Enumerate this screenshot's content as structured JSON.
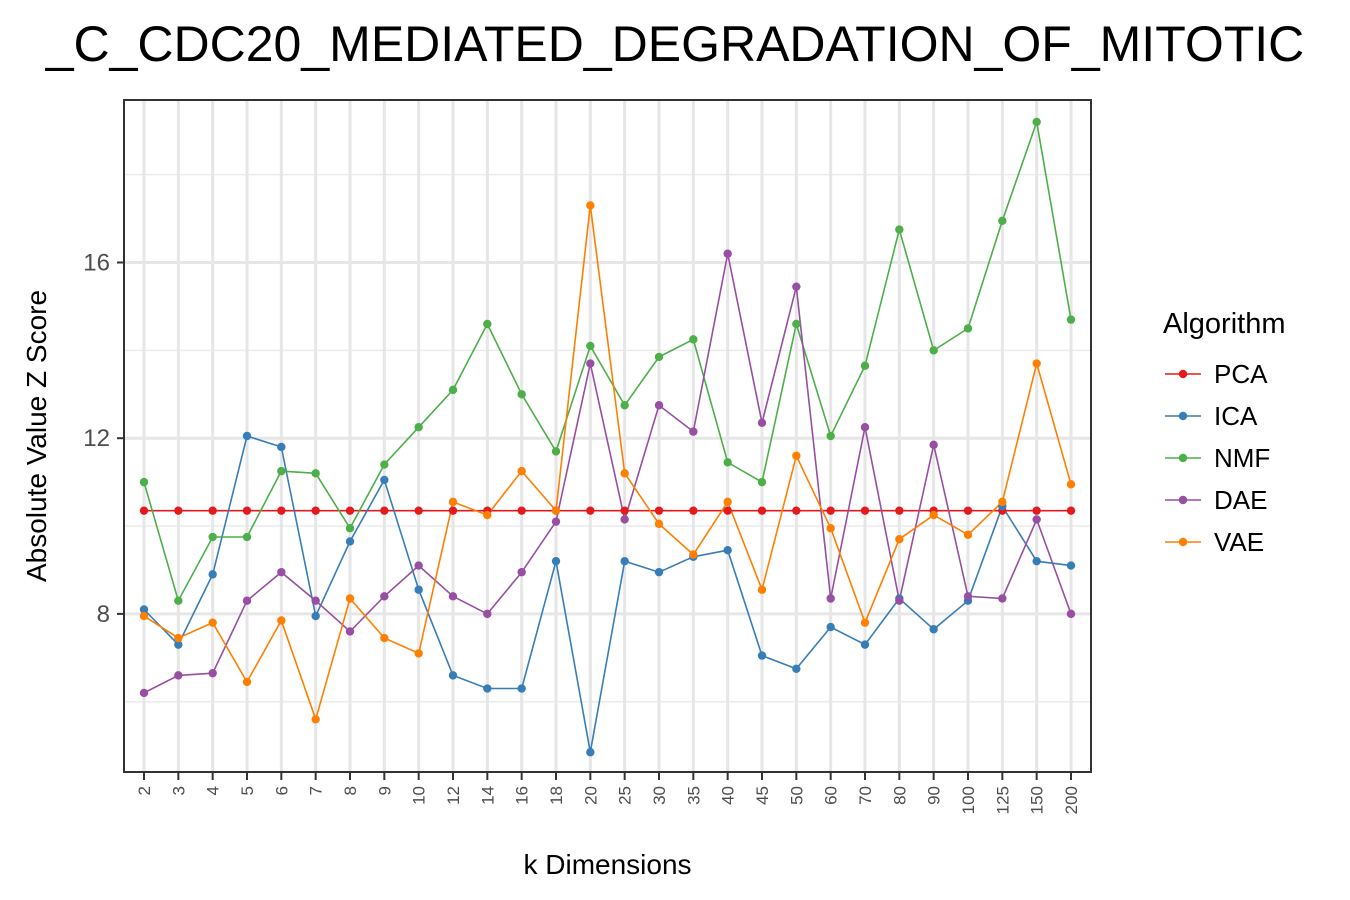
{
  "chart_data": {
    "type": "line",
    "title": "_C_CDC20_MEDIATED_DEGRADATION_OF_MITOTIC",
    "xlabel": "k Dimensions",
    "ylabel": "Absolute Value Z Score",
    "categories": [
      "2",
      "3",
      "4",
      "5",
      "6",
      "7",
      "8",
      "9",
      "10",
      "12",
      "14",
      "16",
      "18",
      "20",
      "25",
      "30",
      "35",
      "40",
      "45",
      "50",
      "60",
      "70",
      "80",
      "90",
      "100",
      "125",
      "150",
      "200"
    ],
    "y_ticks": [
      "8",
      "12",
      "16"
    ],
    "ylim": [
      4.4,
      19.7
    ],
    "legend": {
      "title": "Algorithm",
      "position": "right"
    },
    "grid": true,
    "series": [
      {
        "name": "PCA",
        "color": "#e41a1c",
        "values": [
          10.35,
          10.35,
          10.35,
          10.35,
          10.35,
          10.35,
          10.35,
          10.35,
          10.35,
          10.35,
          10.35,
          10.35,
          10.35,
          10.35,
          10.35,
          10.35,
          10.35,
          10.35,
          10.35,
          10.35,
          10.35,
          10.35,
          10.35,
          10.35,
          10.35,
          10.35,
          10.35,
          10.35
        ]
      },
      {
        "name": "ICA",
        "color": "#377eb8",
        "values": [
          8.1,
          7.3,
          8.9,
          12.05,
          11.8,
          7.95,
          9.65,
          11.05,
          8.55,
          6.6,
          6.3,
          6.3,
          9.2,
          4.85,
          9.2,
          8.95,
          9.3,
          9.45,
          7.05,
          6.75,
          7.7,
          7.3,
          8.35,
          7.65,
          8.3,
          10.45,
          9.2,
          9.1
        ]
      },
      {
        "name": "NMF",
        "color": "#4daf4a",
        "values": [
          11.0,
          8.3,
          9.75,
          9.75,
          11.25,
          11.2,
          9.95,
          11.4,
          12.25,
          13.1,
          14.6,
          13.0,
          11.7,
          14.1,
          12.75,
          13.85,
          14.25,
          11.45,
          11.0,
          14.6,
          12.05,
          13.65,
          16.75,
          14.0,
          14.5,
          16.95,
          19.2,
          14.7
        ]
      },
      {
        "name": "DAE",
        "color": "#984ea3",
        "values": [
          6.2,
          6.6,
          6.65,
          8.3,
          8.95,
          8.3,
          7.6,
          8.4,
          9.1,
          8.4,
          8.0,
          8.95,
          10.1,
          13.7,
          10.15,
          12.75,
          12.15,
          16.2,
          12.35,
          15.45,
          8.35,
          12.25,
          8.3,
          11.85,
          8.4,
          8.35,
          10.15,
          8.0
        ]
      },
      {
        "name": "VAE",
        "color": "#ff7f00",
        "values": [
          7.95,
          7.45,
          7.8,
          6.45,
          7.85,
          5.6,
          8.35,
          7.45,
          7.1,
          10.55,
          10.25,
          11.25,
          10.35,
          17.3,
          11.2,
          10.05,
          9.35,
          10.55,
          8.55,
          11.6,
          9.95,
          7.8,
          9.7,
          10.25,
          9.8,
          10.55,
          13.7,
          10.95
        ]
      }
    ]
  }
}
